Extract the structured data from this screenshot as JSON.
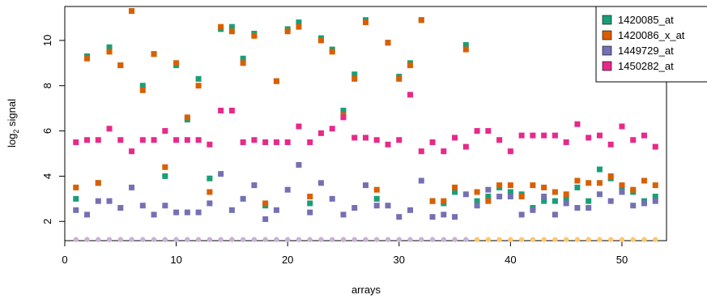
{
  "chart_data": {
    "type": "scatter",
    "xlabel": "arrays",
    "ylabel_main": "log",
    "ylabel_sub": "2",
    "ylabel_rest": " signal",
    "xlim": [
      0,
      54
    ],
    "ylim": [
      1.15,
      11.5
    ],
    "xticks": [
      0,
      10,
      20,
      30,
      40,
      50
    ],
    "yticks": [
      2,
      4,
      6,
      8,
      10
    ],
    "legend_position": "top-right",
    "series": [
      {
        "name": "1420085_at",
        "color": "#1b9e77",
        "x": [
          1,
          2,
          3,
          4,
          5,
          6,
          7,
          8,
          9,
          10,
          11,
          12,
          13,
          14,
          15,
          16,
          17,
          18,
          19,
          20,
          21,
          22,
          23,
          24,
          25,
          26,
          27,
          28,
          29,
          30,
          31,
          32,
          33,
          34,
          35,
          36,
          37,
          38,
          39,
          40,
          41,
          42,
          43,
          44,
          45,
          46,
          47,
          48,
          49,
          50,
          51,
          52,
          53
        ],
        "y": [
          3.0,
          9.3,
          3.7,
          9.7,
          8.9,
          11.3,
          8.0,
          9.4,
          4.0,
          8.9,
          6.5,
          8.3,
          3.9,
          10.5,
          10.6,
          9.2,
          10.3,
          2.7,
          8.2,
          10.5,
          10.8,
          2.8,
          10.1,
          9.6,
          6.9,
          8.5,
          10.9,
          3.0,
          9.9,
          8.4,
          9.0,
          10.9,
          2.9,
          2.8,
          3.3,
          9.8,
          2.9,
          3.1,
          3.5,
          3.3,
          3.2,
          2.6,
          2.9,
          2.9,
          3.0,
          3.5,
          2.9,
          4.3,
          3.9,
          3.5,
          3.3,
          2.9,
          3.1
        ]
      },
      {
        "name": "1420086_x_at",
        "color": "#d95f02",
        "x": [
          1,
          2,
          3,
          4,
          5,
          6,
          7,
          8,
          9,
          10,
          11,
          12,
          13,
          14,
          15,
          16,
          17,
          18,
          19,
          20,
          21,
          22,
          23,
          24,
          25,
          26,
          27,
          28,
          29,
          30,
          31,
          32,
          33,
          34,
          35,
          36,
          37,
          38,
          39,
          40,
          41,
          42,
          43,
          44,
          45,
          46,
          47,
          48,
          49,
          50,
          51,
          52,
          53
        ],
        "y": [
          3.5,
          9.2,
          3.7,
          9.5,
          8.9,
          11.3,
          7.8,
          9.4,
          4.4,
          9.0,
          6.6,
          8.0,
          3.3,
          10.6,
          10.4,
          9.0,
          10.2,
          2.8,
          8.2,
          10.4,
          10.6,
          3.1,
          10.0,
          9.5,
          6.7,
          8.3,
          10.8,
          3.4,
          9.9,
          8.3,
          8.9,
          10.9,
          2.9,
          2.9,
          3.5,
          9.6,
          3.3,
          2.9,
          3.6,
          3.6,
          3.1,
          3.6,
          3.5,
          3.3,
          3.2,
          3.8,
          3.7,
          3.7,
          4.0,
          3.6,
          3.4,
          3.8,
          3.6
        ]
      },
      {
        "name": "1449729_at",
        "color": "#7570b3",
        "x": [
          1,
          2,
          3,
          4,
          5,
          6,
          7,
          8,
          9,
          10,
          11,
          12,
          13,
          14,
          15,
          16,
          17,
          18,
          19,
          20,
          21,
          22,
          23,
          24,
          25,
          26,
          27,
          28,
          29,
          30,
          31,
          32,
          33,
          34,
          35,
          36,
          37,
          38,
          39,
          40,
          41,
          42,
          43,
          44,
          45,
          46,
          47,
          48,
          49,
          50,
          51,
          52,
          53
        ],
        "y": [
          2.5,
          2.3,
          2.9,
          2.9,
          2.6,
          3.5,
          2.7,
          2.3,
          2.7,
          2.4,
          2.4,
          2.4,
          2.8,
          4.1,
          2.5,
          3.0,
          3.6,
          2.1,
          2.5,
          3.4,
          4.5,
          2.4,
          3.7,
          3.0,
          2.3,
          2.6,
          3.6,
          2.7,
          2.7,
          2.2,
          2.5,
          3.8,
          2.2,
          2.3,
          2.2,
          3.2,
          2.7,
          3.4,
          3.1,
          3.1,
          2.3,
          2.5,
          3.1,
          2.3,
          2.8,
          2.6,
          2.6,
          3.2,
          2.9,
          3.3,
          2.7,
          2.8,
          2.9
        ]
      },
      {
        "name": "1450282_at",
        "color": "#e7298a",
        "x": [
          1,
          2,
          3,
          4,
          5,
          6,
          7,
          8,
          9,
          10,
          11,
          12,
          13,
          14,
          15,
          16,
          17,
          18,
          19,
          20,
          21,
          22,
          23,
          24,
          25,
          26,
          27,
          28,
          29,
          30,
          31,
          32,
          33,
          34,
          35,
          36,
          37,
          38,
          39,
          40,
          41,
          42,
          43,
          44,
          45,
          46,
          47,
          48,
          49,
          50,
          51,
          52,
          53
        ],
        "y": [
          5.5,
          5.6,
          5.6,
          6.1,
          5.6,
          5.1,
          5.6,
          5.6,
          6.0,
          5.6,
          5.6,
          5.6,
          5.4,
          6.9,
          6.9,
          5.5,
          5.6,
          5.5,
          5.5,
          5.5,
          6.2,
          5.5,
          5.9,
          6.1,
          6.6,
          5.7,
          5.7,
          5.6,
          5.4,
          5.6,
          7.6,
          5.1,
          5.5,
          5.1,
          5.7,
          5.3,
          6.0,
          6.0,
          5.6,
          5.1,
          5.8,
          5.8,
          5.8,
          5.8,
          5.5,
          6.3,
          5.7,
          5.8,
          5.4,
          6.2,
          5.6,
          5.8,
          5.3
        ]
      },
      {
        "name": "",
        "color": "#cab2d6",
        "marker": "circle",
        "x": [
          1,
          2,
          3,
          4,
          5,
          6,
          7,
          8,
          9,
          10,
          11,
          12,
          13,
          14,
          15,
          16,
          17,
          18,
          19,
          20,
          21,
          22,
          23,
          24,
          25,
          26,
          27,
          28,
          29,
          30,
          31,
          32,
          33,
          34,
          35,
          36
        ],
        "y": [
          1.2,
          1.2,
          1.2,
          1.2,
          1.2,
          1.2,
          1.2,
          1.2,
          1.2,
          1.2,
          1.2,
          1.2,
          1.2,
          1.2,
          1.2,
          1.2,
          1.2,
          1.2,
          1.2,
          1.2,
          1.2,
          1.2,
          1.2,
          1.2,
          1.2,
          1.2,
          1.2,
          1.2,
          1.2,
          1.2,
          1.2,
          1.2,
          1.2,
          1.2,
          1.2,
          1.2
        ]
      },
      {
        "name": "",
        "color": "#fdc86f",
        "marker": "circle",
        "x": [
          37,
          38,
          39,
          40,
          41,
          42,
          43,
          44,
          45,
          46,
          47,
          48,
          49,
          50,
          51,
          52,
          53
        ],
        "y": [
          1.2,
          1.2,
          1.2,
          1.2,
          1.2,
          1.2,
          1.2,
          1.2,
          1.2,
          1.2,
          1.2,
          1.2,
          1.2,
          1.2,
          1.2,
          1.2,
          1.2
        ]
      }
    ]
  }
}
